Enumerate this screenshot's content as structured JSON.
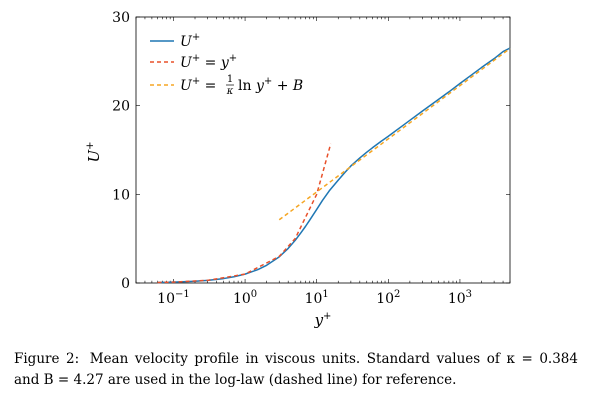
{
  "chart_data": {
    "type": "line",
    "x_scale": "log",
    "xlim": [
      0.03,
      5000
    ],
    "ylim": [
      0,
      30
    ],
    "xlabel": "y+",
    "ylabel": "U+",
    "x_ticks": [
      {
        "value": 0.1,
        "label": "10−1"
      },
      {
        "value": 1,
        "label": "100"
      },
      {
        "value": 10,
        "label": "101"
      },
      {
        "value": 100,
        "label": "102"
      },
      {
        "value": 1000,
        "label": "103"
      }
    ],
    "y_ticks": [
      {
        "value": 0,
        "label": "0"
      },
      {
        "value": 10,
        "label": "10"
      },
      {
        "value": 20,
        "label": "20"
      },
      {
        "value": 30,
        "label": "30"
      }
    ],
    "grid": false,
    "legend_position": "top-left",
    "series": [
      {
        "name": "U+",
        "color": "#1f77b4",
        "style": "solid",
        "x": [
          0.06,
          0.1,
          0.2,
          0.3,
          0.5,
          0.7,
          1,
          1.5,
          2,
          3,
          4,
          5,
          6,
          7,
          8,
          10,
          12,
          15,
          20,
          25,
          30,
          40,
          50,
          60,
          80,
          100,
          150,
          200,
          300,
          500,
          700,
          1000,
          1500,
          2000,
          3000,
          4000,
          5000
        ],
        "y": [
          0.06,
          0.1,
          0.2,
          0.3,
          0.5,
          0.7,
          1.0,
          1.5,
          2.0,
          2.95,
          3.9,
          4.8,
          5.65,
          6.4,
          7.1,
          8.3,
          9.3,
          10.4,
          11.6,
          12.5,
          13.2,
          14.1,
          14.75,
          15.25,
          16.0,
          16.55,
          17.6,
          18.35,
          19.4,
          20.7,
          21.55,
          22.5,
          23.55,
          24.3,
          25.3,
          26.1,
          26.5
        ]
      },
      {
        "name": "U+ = y+",
        "color": "#e8502a",
        "style": "dashed",
        "x": [
          0.06,
          0.1,
          0.3,
          1,
          3,
          5,
          10,
          15.7
        ],
        "y": [
          0.06,
          0.1,
          0.3,
          1,
          3,
          5,
          10,
          15.7
        ]
      },
      {
        "name": "U+ = (1/κ) ln y+ + B",
        "color": "#f5a623",
        "style": "dashed",
        "x": [
          3,
          10,
          30,
          100,
          300,
          1000,
          3000,
          5000
        ],
        "y": [
          7.13,
          10.27,
          13.13,
          16.26,
          19.12,
          22.26,
          25.12,
          26.45
        ]
      }
    ]
  },
  "caption": {
    "label": "Figure 2:",
    "text": "Mean velocity profile in viscous units. Standard values of κ = 0.384 and B = 4.27 are used in the log-law (dashed line) for reference."
  }
}
